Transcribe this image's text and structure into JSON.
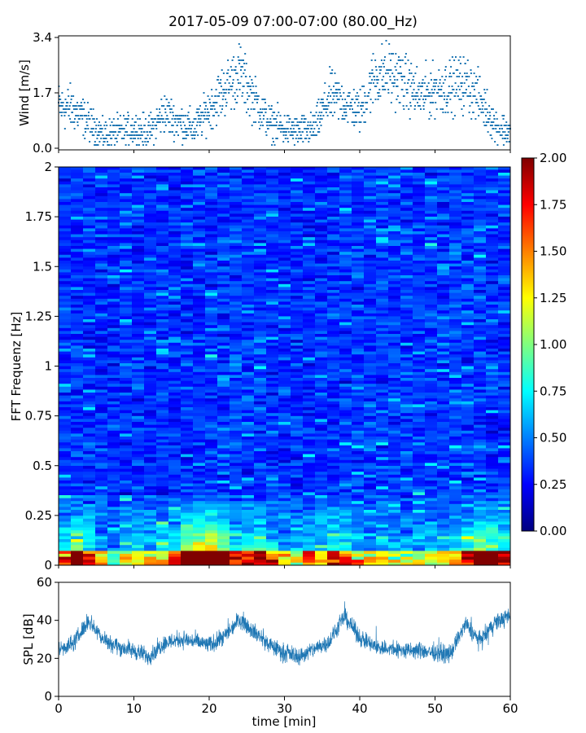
{
  "title": "2017-05-09 07:00-07:00 (80.00_Hz)",
  "chart_data": [
    {
      "type": "scatter",
      "ylabel": "Wind [m/s]",
      "xlabel": "",
      "xlim": [
        0,
        60
      ],
      "ylim": [
        -0.05,
        3.45
      ],
      "yticks": [
        "0.0",
        "1.7",
        "3.4"
      ],
      "color": "#1f77b4",
      "series": [
        {
          "x": [
            0,
            2,
            4,
            6,
            8,
            10,
            12,
            14,
            16,
            18,
            20,
            22,
            24,
            26,
            28,
            30,
            32,
            34,
            36,
            38,
            40,
            42,
            44,
            46,
            48,
            50,
            52,
            54,
            56,
            58,
            60
          ],
          "y": [
            1.3,
            1.2,
            0.8,
            0.4,
            0.5,
            0.6,
            0.5,
            1.1,
            0.8,
            0.6,
            1.2,
            1.8,
            2.3,
            1.5,
            0.8,
            0.6,
            0.5,
            0.6,
            1.6,
            1.4,
            1.1,
            2.2,
            2.3,
            2.0,
            1.6,
            1.8,
            1.9,
            2.0,
            1.5,
            0.7,
            0.5
          ]
        }
      ]
    },
    {
      "type": "heatmap",
      "ylabel": "FFT Frequenz [Hz]",
      "xlabel": "",
      "xlim": [
        0,
        60
      ],
      "ylim": [
        0,
        2
      ],
      "yticks": [
        "0",
        "0.25",
        "0.5",
        "0.75",
        "1",
        "1.25",
        "1.5",
        "1.75",
        "2"
      ],
      "colormap": "jet",
      "clim": [
        0,
        2
      ],
      "colorbar_ticks": [
        "0.00",
        "0.25",
        "0.50",
        "0.75",
        "1.00",
        "1.25",
        "1.50",
        "1.75",
        "2.00"
      ],
      "background_level": 0.32
    },
    {
      "type": "line",
      "ylabel": "SPL [dB]",
      "xlabel": "time [min]",
      "xlim": [
        0,
        60
      ],
      "ylim": [
        0,
        60
      ],
      "xticks": [
        "0",
        "10",
        "20",
        "30",
        "40",
        "50",
        "60"
      ],
      "yticks": [
        "0",
        "20",
        "40",
        "60"
      ],
      "color": "#1f77b4",
      "series": [
        {
          "x": [
            0,
            2,
            4,
            6,
            8,
            10,
            12,
            14,
            16,
            18,
            20,
            22,
            24,
            26,
            28,
            30,
            32,
            34,
            36,
            38,
            40,
            42,
            44,
            46,
            48,
            50,
            52,
            54,
            56,
            58,
            60
          ],
          "y": [
            25,
            28,
            40,
            30,
            26,
            24,
            21,
            28,
            30,
            29,
            27,
            31,
            41,
            34,
            27,
            23,
            21,
            25,
            29,
            42,
            31,
            26,
            25,
            24,
            24,
            23,
            22,
            38,
            29,
            39,
            42
          ]
        }
      ]
    }
  ]
}
